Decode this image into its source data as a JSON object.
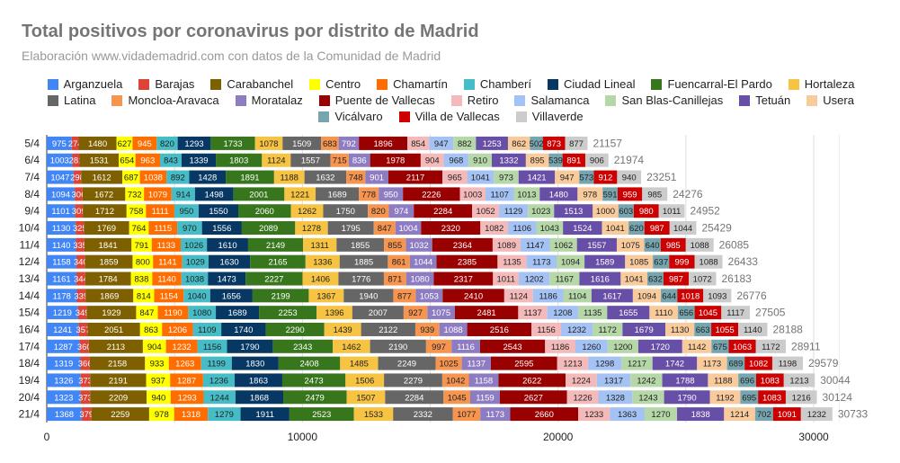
{
  "title": "Total positivos por coronavirus por distrito de Madrid",
  "subtitle": "Elaboración www.vidademadrid.com con datos de la Comunidad de Madrid",
  "chart_data": {
    "type": "bar",
    "orientation": "horizontal",
    "stacked": true,
    "xlim": [
      0,
      30733
    ],
    "x_ticks": [
      "0",
      "10000",
      "20000",
      "30000"
    ],
    "grid": true,
    "legend_position": "top",
    "categories": [
      "5/4",
      "6/4",
      "7/4",
      "8/4",
      "9/4",
      "10/4",
      "11/4",
      "12/4",
      "13/4",
      "14/4",
      "15/4",
      "16/4",
      "17/4",
      "18/4",
      "19/4",
      "20/4",
      "21/4"
    ],
    "totals": [
      21157,
      21974,
      23251,
      24276,
      24952,
      25429,
      26085,
      26433,
      26183,
      26776,
      27505,
      28188,
      28911,
      29579,
      30044,
      30124,
      30733
    ],
    "series": [
      {
        "name": "Arganzuela",
        "color": "#4285f4",
        "values": [
          975,
          1003,
          1047,
          1094,
          1101,
          1130,
          1140,
          1158,
          1161,
          1178,
          1219,
          1241,
          1287,
          1319,
          1326,
          1323,
          1368
        ]
      },
      {
        "name": "Barajas",
        "color": "#db4437",
        "values": [
          274,
          281,
          298,
          306,
          309,
          325,
          335,
          340,
          344,
          339,
          349,
          357,
          360,
          366,
          373,
          373,
          379
        ]
      },
      {
        "name": "Carabanchel",
        "color": "#7f6000",
        "values": [
          1480,
          1531,
          1612,
          1672,
          1712,
          1769,
          1841,
          1859,
          1784,
          1869,
          1929,
          2051,
          2113,
          2158,
          2191,
          2209,
          2259
        ]
      },
      {
        "name": "Centro",
        "color": "#ffff00",
        "values": [
          627,
          654,
          687,
          732,
          758,
          764,
          791,
          800,
          838,
          814,
          847,
          863,
          904,
          933,
          937,
          940,
          978
        ]
      },
      {
        "name": "Chamartín",
        "color": "#ff6d01",
        "values": [
          945,
          963,
          1038,
          1079,
          1111,
          1115,
          1133,
          1141,
          1140,
          1154,
          1190,
          1206,
          1232,
          1263,
          1287,
          1293,
          1318
        ]
      },
      {
        "name": "Chamberí",
        "color": "#46bdc6",
        "values": [
          820,
          843,
          892,
          914,
          950,
          970,
          1026,
          1029,
          1038,
          1040,
          1080,
          1109,
          1156,
          1199,
          1236,
          1244,
          1279
        ]
      },
      {
        "name": "Ciudad Lineal",
        "color": "#073763",
        "values": [
          1293,
          1339,
          1428,
          1498,
          1550,
          1556,
          1610,
          1630,
          1473,
          1656,
          1689,
          1740,
          1790,
          1830,
          1863,
          1868,
          1911
        ]
      },
      {
        "name": "Fuencarral-El Pardo",
        "color": "#38761d",
        "values": [
          1733,
          1803,
          1891,
          2001,
          2060,
          2089,
          2149,
          2165,
          2227,
          2199,
          2253,
          2290,
          2343,
          2408,
          2473,
          2479,
          2523
        ]
      },
      {
        "name": "Hortaleza",
        "color": "#f6c342",
        "values": [
          1078,
          1124,
          1188,
          1221,
          1262,
          1278,
          1311,
          1336,
          1406,
          1367,
          1396,
          1439,
          1462,
          1485,
          1506,
          1507,
          1533
        ]
      },
      {
        "name": "Latina",
        "color": "#666666",
        "values": [
          1509,
          1557,
          1632,
          1689,
          1750,
          1795,
          1855,
          1885,
          1776,
          1940,
          2007,
          2122,
          2190,
          2249,
          2279,
          2284,
          2332
        ]
      },
      {
        "name": "Moncloa-Aravaca",
        "color": "#f6954f",
        "values": [
          683,
          715,
          748,
          778,
          820,
          847,
          855,
          861,
          871,
          877,
          927,
          939,
          997,
          1025,
          1042,
          1045,
          1077
        ]
      },
      {
        "name": "Moratalaz",
        "color": "#8e7cc3",
        "values": [
          792,
          836,
          901,
          950,
          974,
          1004,
          1032,
          1044,
          1080,
          1053,
          1075,
          1088,
          1116,
          1137,
          1158,
          1159,
          1173
        ]
      },
      {
        "name": "Puente de Vallecas",
        "color": "#990000",
        "values": [
          1896,
          1978,
          2117,
          2226,
          2284,
          2320,
          2364,
          2385,
          2317,
          2410,
          2481,
          2516,
          2543,
          2595,
          2622,
          2627,
          2660
        ]
      },
      {
        "name": "Retiro",
        "color": "#f4b9b9",
        "values": [
          854,
          904,
          965,
          1003,
          1052,
          1082,
          1089,
          1135,
          1011,
          1124,
          1137,
          1156,
          1186,
          1213,
          1224,
          1226,
          1233
        ]
      },
      {
        "name": "Salamanca",
        "color": "#a4c2f4",
        "values": [
          947,
          968,
          1041,
          1107,
          1129,
          1106,
          1147,
          1173,
          1202,
          1186,
          1208,
          1232,
          1260,
          1298,
          1317,
          1328,
          1363
        ]
      },
      {
        "name": "San Blas-Canillejas",
        "color": "#b6d7a8",
        "values": [
          882,
          910,
          973,
          1013,
          1023,
          1043,
          1062,
          1094,
          1167,
          1104,
          1135,
          1172,
          1200,
          1217,
          1242,
          1243,
          1270
        ]
      },
      {
        "name": "Tetuán",
        "color": "#674ea7",
        "values": [
          1253,
          1332,
          1421,
          1480,
          1513,
          1524,
          1557,
          1589,
          1616,
          1617,
          1655,
          1679,
          1720,
          1742,
          1788,
          1790,
          1838
        ]
      },
      {
        "name": "Usera",
        "color": "#f9cb9c",
        "values": [
          862,
          895,
          947,
          978,
          1000,
          1041,
          1075,
          1085,
          1041,
          1094,
          1110,
          1130,
          1142,
          1173,
          1188,
          1192,
          1214
        ]
      },
      {
        "name": "Vicálvaro",
        "color": "#76a5af",
        "values": [
          502,
          539,
          573,
          591,
          603,
          620,
          640,
          637,
          632,
          644,
          656,
          663,
          675,
          689,
          696,
          695,
          702
        ]
      },
      {
        "name": "Villa de Vallecas",
        "color": "#cc0000",
        "values": [
          873,
          891,
          912,
          959,
          980,
          987,
          985,
          999,
          987,
          1018,
          1045,
          1055,
          1063,
          1082,
          1083,
          1083,
          1091
        ]
      },
      {
        "name": "Villaverde",
        "color": "#cccccc",
        "values": [
          877,
          906,
          940,
          985,
          1011,
          1044,
          1088,
          1088,
          1072,
          1093,
          1117,
          1140,
          1172,
          1198,
          1213,
          1216,
          1232
        ]
      }
    ]
  }
}
